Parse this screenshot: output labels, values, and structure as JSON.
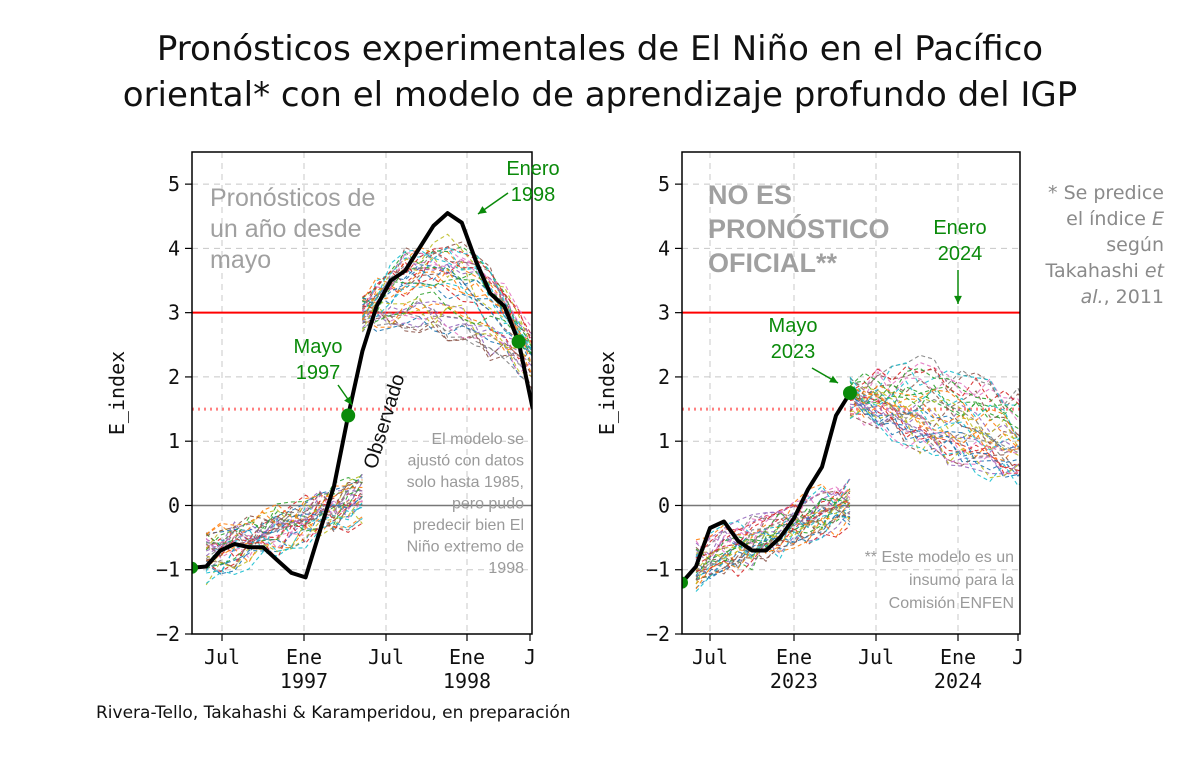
{
  "title_line1": "Pronósticos experimentales de El Niño en el Pacífico",
  "title_line2": "oriental* con el modelo de aprendizaje profundo del IGP",
  "footnote": {
    "l1": "* Se predice",
    "l2a": "el índice ",
    "l2b": "E",
    "l3": "según",
    "l4a": "Takahashi ",
    "l4b": "et",
    "l5a": "al.",
    "l5b": ", 2011"
  },
  "credit": "Rivera-Tello, Takahashi & Karamperidou, en preparación",
  "colors": {
    "observed": "#000000",
    "threshold_strong": "#ff0000",
    "threshold_moderate": "#ff8080",
    "annotation": "#0a8a0a"
  },
  "chart_data": [
    {
      "type": "line",
      "ylabel": "E_index",
      "ylim": [
        -2,
        5.5
      ],
      "yticks": [
        "5",
        "4",
        "3",
        "2",
        "1",
        "0",
        "−1",
        "−2"
      ],
      "xtick_labels": [
        {
          "top": "Jul",
          "bottom": ""
        },
        {
          "top": "Ene",
          "bottom": "1997"
        },
        {
          "top": "Jul",
          "bottom": ""
        },
        {
          "top": "Ene",
          "bottom": "1998"
        },
        {
          "top": "J",
          "bottom": ""
        }
      ],
      "hlines": [
        3,
        1.5,
        0
      ],
      "observed_name": "Observado",
      "observed": [
        -0.97,
        -0.95,
        -0.7,
        -0.6,
        -0.65,
        -0.65,
        -0.85,
        -1.05,
        -1.12,
        -0.4,
        0.3,
        1.4,
        2.4,
        3.1,
        3.5,
        3.65,
        4.0,
        4.35,
        4.55,
        4.4,
        3.8,
        3.3,
        3.1,
        2.55,
        1.5
      ],
      "overlay_text": [
        "Pronósticos de",
        "un año desde",
        "mayo"
      ],
      "annotations": [
        {
          "text": [
            "Mayo",
            "1997"
          ],
          "value": 1.4
        },
        {
          "text": [
            "Enero",
            "1998"
          ],
          "value": 4.55
        }
      ],
      "note": [
        "El modelo se",
        "ajustó con datos",
        "solo hasta 1985,",
        "pero pudo",
        "predecir bien El",
        "Niño extremo de",
        "1998"
      ]
    },
    {
      "type": "line",
      "ylabel": "E_index",
      "ylim": [
        -2,
        5.5
      ],
      "yticks": [
        "5",
        "4",
        "3",
        "2",
        "1",
        "0",
        "−1",
        "−2"
      ],
      "xtick_labels": [
        {
          "top": "Jul",
          "bottom": ""
        },
        {
          "top": "Ene",
          "bottom": "2023"
        },
        {
          "top": "Jul",
          "bottom": ""
        },
        {
          "top": "Ene",
          "bottom": "2024"
        },
        {
          "top": "J",
          "bottom": ""
        }
      ],
      "hlines": [
        3,
        1.5,
        0
      ],
      "observed": [
        -1.2,
        -0.95,
        -0.35,
        -0.25,
        -0.55,
        -0.7,
        -0.7,
        -0.5,
        -0.2,
        0.25,
        0.6,
        1.4,
        1.75
      ],
      "overlay_text": [
        "NO ES",
        "PRONÓSTICO",
        "OFICIAL**"
      ],
      "annotations": [
        {
          "text": [
            "Mayo",
            "2023"
          ],
          "value": 1.75
        },
        {
          "text": [
            "Enero",
            "2024"
          ],
          "value": 3.0
        }
      ],
      "note": [
        "** Este modelo es un",
        "insumo para la",
        "Comisión ENFEN"
      ]
    }
  ]
}
